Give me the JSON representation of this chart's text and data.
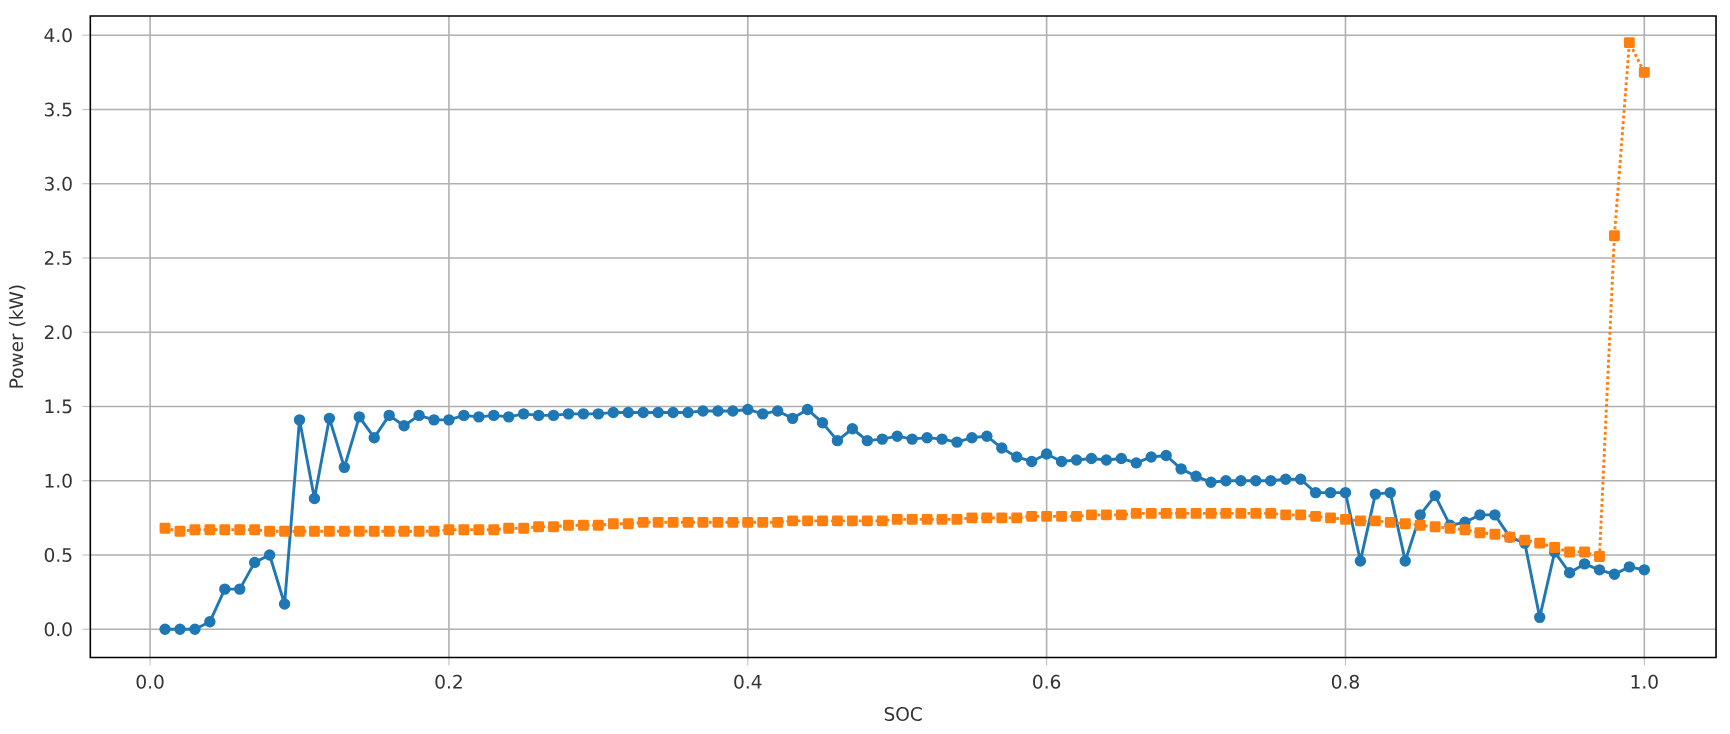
{
  "chart_data": {
    "type": "line",
    "xlabel": "SOC",
    "ylabel": "Power (kW)",
    "x": [
      0.01,
      0.02,
      0.03,
      0.04,
      0.05,
      0.06,
      0.07,
      0.08,
      0.09,
      0.1,
      0.11,
      0.12,
      0.13,
      0.14,
      0.15,
      0.16,
      0.17,
      0.18,
      0.19,
      0.2,
      0.21,
      0.22,
      0.23,
      0.24,
      0.25,
      0.26,
      0.27,
      0.28,
      0.29,
      0.3,
      0.31,
      0.32,
      0.33,
      0.34,
      0.35,
      0.36,
      0.37,
      0.38,
      0.39,
      0.4,
      0.41,
      0.42,
      0.43,
      0.44,
      0.45,
      0.46,
      0.47,
      0.48,
      0.49,
      0.5,
      0.51,
      0.52,
      0.53,
      0.54,
      0.55,
      0.56,
      0.57,
      0.58,
      0.59,
      0.6,
      0.61,
      0.62,
      0.63,
      0.64,
      0.65,
      0.66,
      0.67,
      0.68,
      0.69,
      0.7,
      0.71,
      0.72,
      0.73,
      0.74,
      0.75,
      0.76,
      0.77,
      0.78,
      0.79,
      0.8,
      0.81,
      0.82,
      0.83,
      0.84,
      0.85,
      0.86,
      0.87,
      0.88,
      0.89,
      0.9,
      0.91,
      0.92,
      0.93,
      0.94,
      0.95,
      0.96,
      0.97,
      0.98,
      0.99,
      1.0
    ],
    "series": [
      {
        "color": "#1f77b4",
        "marker": "circle",
        "line_style": "solid",
        "values": [
          0,
          0,
          0,
          0.05,
          0.27,
          0.27,
          0.45,
          0.5,
          0.17,
          1.41,
          0.88,
          1.42,
          1.09,
          1.43,
          1.29,
          1.44,
          1.37,
          1.44,
          1.41,
          1.41,
          1.44,
          1.43,
          1.44,
          1.43,
          1.45,
          1.44,
          1.44,
          1.45,
          1.45,
          1.45,
          1.46,
          1.46,
          1.46,
          1.46,
          1.46,
          1.46,
          1.47,
          1.47,
          1.47,
          1.48,
          1.45,
          1.47,
          1.42,
          1.48,
          1.39,
          1.27,
          1.35,
          1.27,
          1.28,
          1.3,
          1.28,
          1.29,
          1.28,
          1.26,
          1.29,
          1.3,
          1.22,
          1.16,
          1.13,
          1.18,
          1.13,
          1.14,
          1.15,
          1.14,
          1.15,
          1.12,
          1.16,
          1.17,
          1.08,
          1.03,
          0.99,
          1.0,
          1.0,
          1.0,
          1.0,
          1.01,
          1.01,
          0.92,
          0.92,
          0.92,
          0.46,
          0.91,
          0.92,
          0.46,
          0.77,
          0.9,
          0.7,
          0.72,
          0.77,
          0.77,
          0.62,
          0.58,
          0.08,
          0.52,
          0.38,
          0.44,
          0.4,
          0.37,
          0.42,
          0.4
        ]
      },
      {
        "color": "#ff7f0e",
        "marker": "square",
        "line_style": "dotted",
        "values": [
          0.68,
          0.66,
          0.67,
          0.67,
          0.67,
          0.67,
          0.67,
          0.66,
          0.66,
          0.66,
          0.66,
          0.66,
          0.66,
          0.66,
          0.66,
          0.66,
          0.66,
          0.66,
          0.66,
          0.67,
          0.67,
          0.67,
          0.67,
          0.68,
          0.68,
          0.69,
          0.69,
          0.7,
          0.7,
          0.7,
          0.71,
          0.71,
          0.72,
          0.72,
          0.72,
          0.72,
          0.72,
          0.72,
          0.72,
          0.72,
          0.72,
          0.72,
          0.73,
          0.73,
          0.73,
          0.73,
          0.73,
          0.73,
          0.73,
          0.74,
          0.74,
          0.74,
          0.74,
          0.74,
          0.75,
          0.75,
          0.75,
          0.75,
          0.76,
          0.76,
          0.76,
          0.76,
          0.77,
          0.77,
          0.77,
          0.78,
          0.78,
          0.78,
          0.78,
          0.78,
          0.78,
          0.78,
          0.78,
          0.78,
          0.78,
          0.77,
          0.77,
          0.76,
          0.75,
          0.74,
          0.73,
          0.73,
          0.72,
          0.71,
          0.7,
          0.69,
          0.68,
          0.67,
          0.65,
          0.64,
          0.62,
          0.6,
          0.58,
          0.55,
          0.52,
          0.52,
          0.49,
          2.65,
          3.95,
          3.75
        ]
      }
    ],
    "xlim": [
      -0.04,
      1.048
    ],
    "ylim": [
      -0.19,
      4.13
    ],
    "xticks": [
      {
        "value": 0,
        "label": "0.0"
      },
      0.2,
      0.4,
      0.6,
      0.8,
      {
        "value": 1,
        "label": "1.0"
      }
    ],
    "yticks": [
      {
        "value": 0,
        "label": "0.0"
      },
      0.5,
      {
        "value": 1,
        "label": "1.0"
      },
      1.5,
      {
        "value": 2,
        "label": "2.0"
      },
      2.5,
      {
        "value": 3,
        "label": "3.0"
      },
      3.5,
      {
        "value": 4,
        "label": "4.0"
      }
    ],
    "grid": true
  }
}
